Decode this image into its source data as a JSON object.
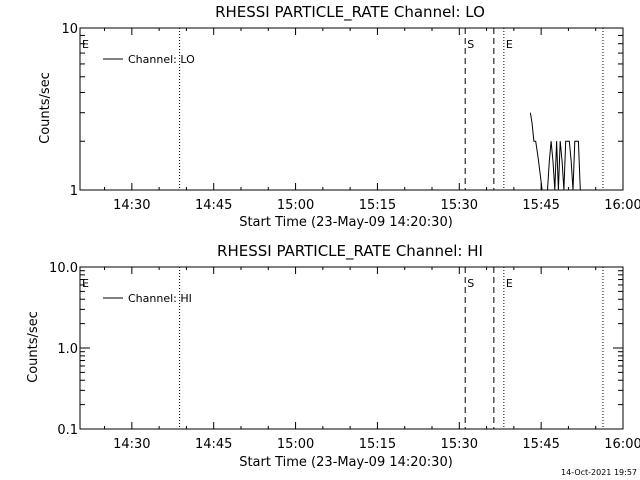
{
  "chart_data": [
    {
      "type": "line",
      "title": "RHESSI PARTICLE_RATE Channel: LO",
      "xlabel": "Start Time (23-May-09 14:20:30)",
      "ylabel": "Counts/sec",
      "y_scale": "log",
      "ylim": [
        1,
        10
      ],
      "y_ticks": [
        "1",
        "10"
      ],
      "xlim": [
        "14:20:30",
        "16:00:00"
      ],
      "x_ticks": [
        "14:30",
        "14:45",
        "15:00",
        "15:15",
        "15:30",
        "15:45",
        "16:00"
      ],
      "legend": {
        "label": "Channel: LO",
        "placement": "top-left"
      },
      "markers": [
        {
          "label": "E",
          "time": "14:20:30",
          "style": "dotted"
        },
        {
          "label": "",
          "time": "14:38:45",
          "style": "dotted"
        },
        {
          "label": "S",
          "time": "15:31:05",
          "style": "dashed"
        },
        {
          "label": "",
          "time": "15:36:20",
          "style": "dashed"
        },
        {
          "label": "E",
          "time": "15:38:10",
          "style": "dotted"
        },
        {
          "label": "",
          "time": "15:56:20",
          "style": "dotted"
        }
      ],
      "series": [
        {
          "name": "Channel: LO",
          "points": [
            [
              "15:43:02",
              3
            ],
            [
              "15:43:20",
              2.6
            ],
            [
              "15:43:40",
              2
            ],
            [
              "15:44:00",
              2
            ],
            [
              "15:44:25",
              1.6
            ],
            [
              "15:44:50",
              1.25
            ],
            [
              "15:45:10",
              1
            ],
            [
              "15:46:10",
              1
            ],
            [
              "15:46:30",
              1.5
            ],
            [
              "15:46:50",
              2
            ],
            [
              "15:47:10",
              1.5
            ],
            [
              "15:47:30",
              1
            ],
            [
              "15:47:50",
              2
            ],
            [
              "15:48:10",
              1
            ],
            [
              "15:48:30",
              2
            ],
            [
              "15:48:50",
              1.5
            ],
            [
              "15:49:10",
              1
            ],
            [
              "15:49:30",
              2
            ],
            [
              "15:50:10",
              2
            ],
            [
              "15:50:30",
              1.5
            ],
            [
              "15:50:50",
              1
            ],
            [
              "15:51:10",
              2
            ],
            [
              "15:51:50",
              2
            ],
            [
              "15:52:10",
              1
            ]
          ]
        }
      ]
    },
    {
      "type": "line",
      "title": "RHESSI PARTICLE_RATE Channel: HI",
      "xlabel": "Start Time (23-May-09 14:20:30)",
      "ylabel": "Counts/sec",
      "y_scale": "log",
      "ylim": [
        0.1,
        10
      ],
      "y_ticks": [
        "0.1",
        "1.0",
        "10.0"
      ],
      "xlim": [
        "14:20:30",
        "16:00:00"
      ],
      "x_ticks": [
        "14:30",
        "14:45",
        "15:00",
        "15:15",
        "15:30",
        "15:45",
        "16:00"
      ],
      "legend": {
        "label": "Channel: HI",
        "placement": "top-left"
      },
      "markers": [
        {
          "label": "E",
          "time": "14:20:30",
          "style": "dotted"
        },
        {
          "label": "",
          "time": "14:38:45",
          "style": "dotted"
        },
        {
          "label": "S",
          "time": "15:31:05",
          "style": "dashed"
        },
        {
          "label": "",
          "time": "15:36:20",
          "style": "dashed"
        },
        {
          "label": "E",
          "time": "15:38:10",
          "style": "dotted"
        },
        {
          "label": "",
          "time": "15:56:20",
          "style": "dotted"
        }
      ],
      "series": [
        {
          "name": "Channel: HI",
          "points": []
        }
      ]
    }
  ],
  "footer": {
    "timestamp": "14-Oct-2021 19:57"
  }
}
